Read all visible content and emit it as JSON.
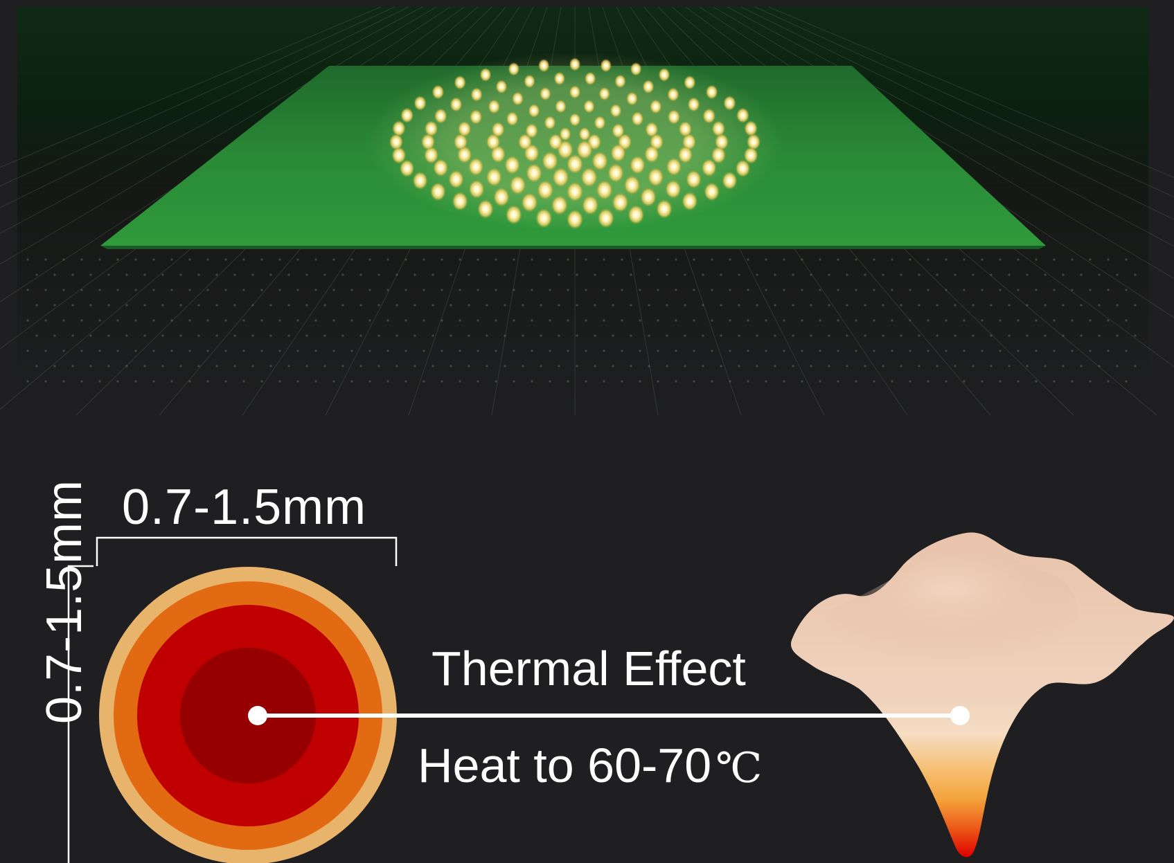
{
  "dimension": {
    "width_label": "0.7-1.5mm",
    "height_label": "0.7-1.5mm"
  },
  "effect": {
    "title": "Thermal Effect",
    "temperature_text": "Heat to 60-70",
    "temperature_unit": "℃"
  },
  "colors": {
    "background": "#1f1f21",
    "green_plane": "#2e8f3a",
    "led_glow": "#fff3b0",
    "ring_outer": "#e8b36b",
    "ring_orange": "#e26a12",
    "ring_red": "#c00000",
    "ring_core": "#970000",
    "skin": "#e7c1a6",
    "heat_tip": "#e00000"
  },
  "icons": {
    "heat_point": "white-dot-icon",
    "skin_tissue": "skin-cone-icon"
  }
}
